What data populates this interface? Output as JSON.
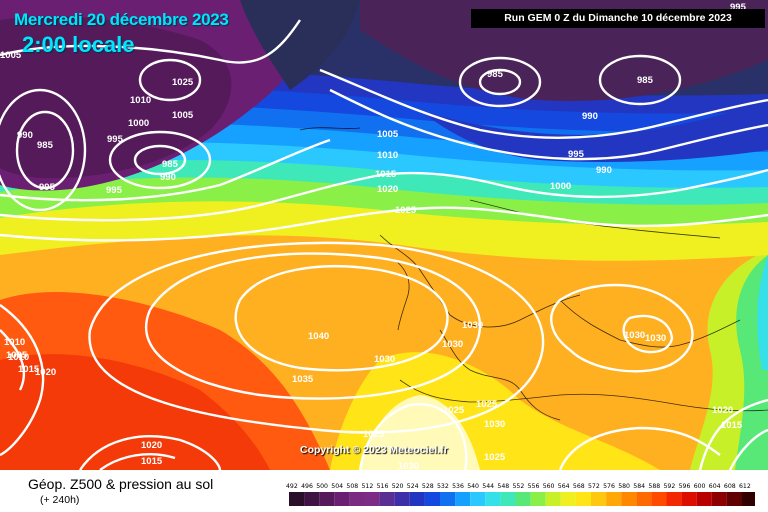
{
  "header": {
    "date": "Mercredi 20 décembre 2023",
    "time": "2:00 locale",
    "run": "Run GEM 0 Z du Dimanche 10 décembre 2023"
  },
  "copyright": "Copyright © 2023 Meteociel.fr",
  "legend": {
    "title": "Géop. Z500 & pression au sol",
    "subtitle": "(+ 240h)",
    "scale_values": [
      "492",
      "496",
      "500",
      "504",
      "508",
      "512",
      "516",
      "520",
      "524",
      "528",
      "532",
      "536",
      "540",
      "544",
      "548",
      "552",
      "556",
      "560",
      "564",
      "568",
      "572",
      "576",
      "580",
      "584",
      "588",
      "592",
      "596",
      "600",
      "604",
      "608",
      "612"
    ],
    "scale_colors": [
      "#2a0f2a",
      "#3d1442",
      "#541a5a",
      "#6b1f73",
      "#7a2a80",
      "#7d2c86",
      "#5a2f94",
      "#3c2fa8",
      "#2236c2",
      "#1448de",
      "#1170f0",
      "#16a0ff",
      "#2ac8ff",
      "#35e0e8",
      "#3fe8b8",
      "#58e878",
      "#8af048",
      "#c8f028",
      "#f0f020",
      "#ffe418",
      "#ffc810",
      "#ffa808",
      "#ff8800",
      "#ff6a00",
      "#ff4a00",
      "#f42800",
      "#dc0e00",
      "#b80000",
      "#8c0000",
      "#600000",
      "#300000"
    ]
  },
  "isobars": [
    {
      "text": "1005"
    },
    {
      "text": "1025"
    },
    {
      "text": "1010"
    },
    {
      "text": "1005"
    },
    {
      "text": "1000"
    },
    {
      "text": "990"
    },
    {
      "text": "985"
    },
    {
      "text": "995"
    },
    {
      "text": "985"
    },
    {
      "text": "990"
    },
    {
      "text": "995"
    },
    {
      "text": "995"
    },
    {
      "text": "1005"
    },
    {
      "text": "1010"
    },
    {
      "text": "1015"
    },
    {
      "text": "1020"
    },
    {
      "text": "1025"
    },
    {
      "text": "985"
    },
    {
      "text": "985"
    },
    {
      "text": "990"
    },
    {
      "text": "995"
    },
    {
      "text": "990"
    },
    {
      "text": "1000"
    },
    {
      "text": "995"
    },
    {
      "text": "1040"
    },
    {
      "text": "1035"
    },
    {
      "text": "1030"
    },
    {
      "text": "1030"
    },
    {
      "text": "1030"
    },
    {
      "text": "1030"
    },
    {
      "text": "1030"
    },
    {
      "text": "1025"
    },
    {
      "text": "1025"
    },
    {
      "text": "1030"
    },
    {
      "text": "1025"
    },
    {
      "text": "1025"
    },
    {
      "text": "1030"
    },
    {
      "text": "1020"
    },
    {
      "text": "1015"
    },
    {
      "text": "1020"
    },
    {
      "text": "1015"
    },
    {
      "text": "1010"
    },
    {
      "text": "1005"
    },
    {
      "text": "1010"
    },
    {
      "text": "1015"
    },
    {
      "text": "1020"
    }
  ]
}
